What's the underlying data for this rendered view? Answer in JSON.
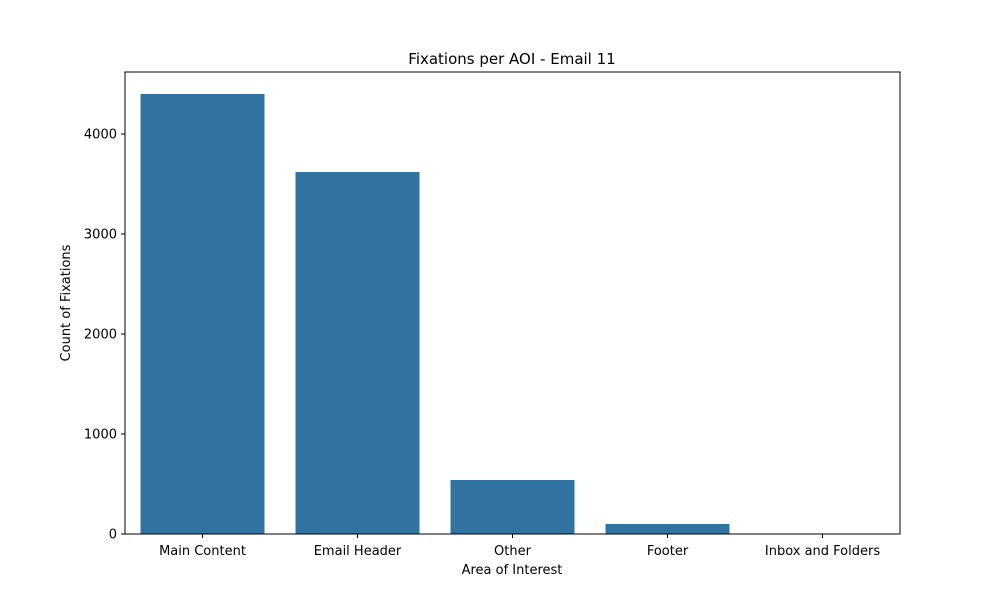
{
  "chart_data": {
    "type": "bar",
    "title": "Fixations per AOI - Email 11",
    "xlabel": "Area of Interest",
    "ylabel": "Count of Fixations",
    "categories": [
      "Main Content",
      "Email Header",
      "Other",
      "Footer",
      "Inbox and Folders"
    ],
    "values": [
      4400,
      3620,
      540,
      100,
      2
    ],
    "ylim": [
      0,
      4620
    ],
    "yticks": [
      0,
      1000,
      2000,
      3000,
      4000
    ],
    "grid": false,
    "legend": "none",
    "bar_color": "#3274a1"
  }
}
